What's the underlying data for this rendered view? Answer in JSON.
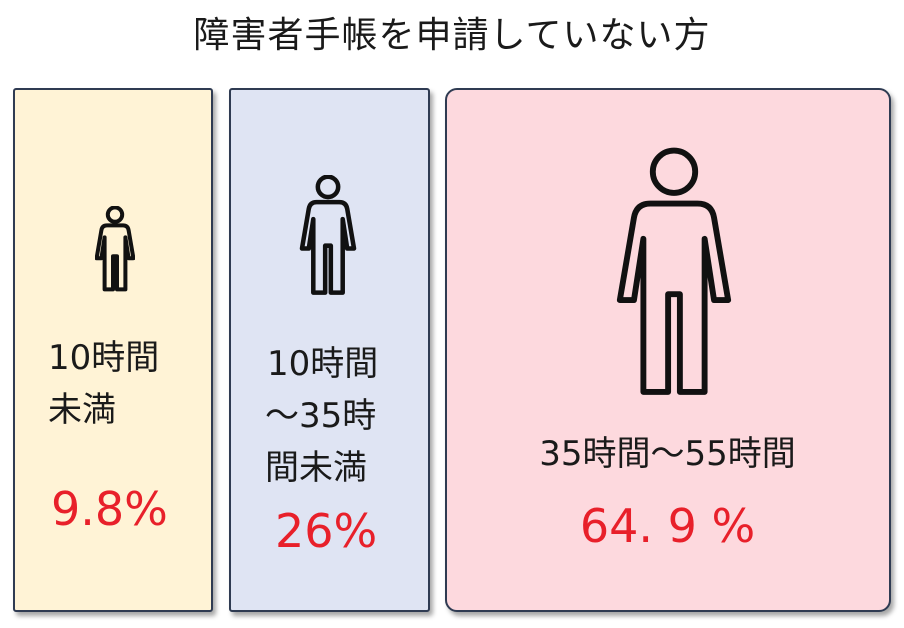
{
  "title": "障害者手帳を申請していない方",
  "groups": [
    {
      "label_lines": [
        "10時間",
        "未満"
      ],
      "percent_text": "9.8%",
      "percent": 9.8
    },
    {
      "label_lines": [
        "10時間",
        "～35時",
        "間未満"
      ],
      "percent_text": "26%",
      "percent": 26
    },
    {
      "label_lines": [
        "35時間～55時間"
      ],
      "percent_text": "64. 9 %",
      "percent": 64.9
    }
  ],
  "colors": {
    "group1_bg": "#fff3d6",
    "group2_bg": "#dfe4f3",
    "group3_bg": "#fdd9de",
    "border": "#2f3b52",
    "percent": "#e8202a"
  },
  "icons": [
    "person-icon",
    "person-icon",
    "person-icon"
  ]
}
